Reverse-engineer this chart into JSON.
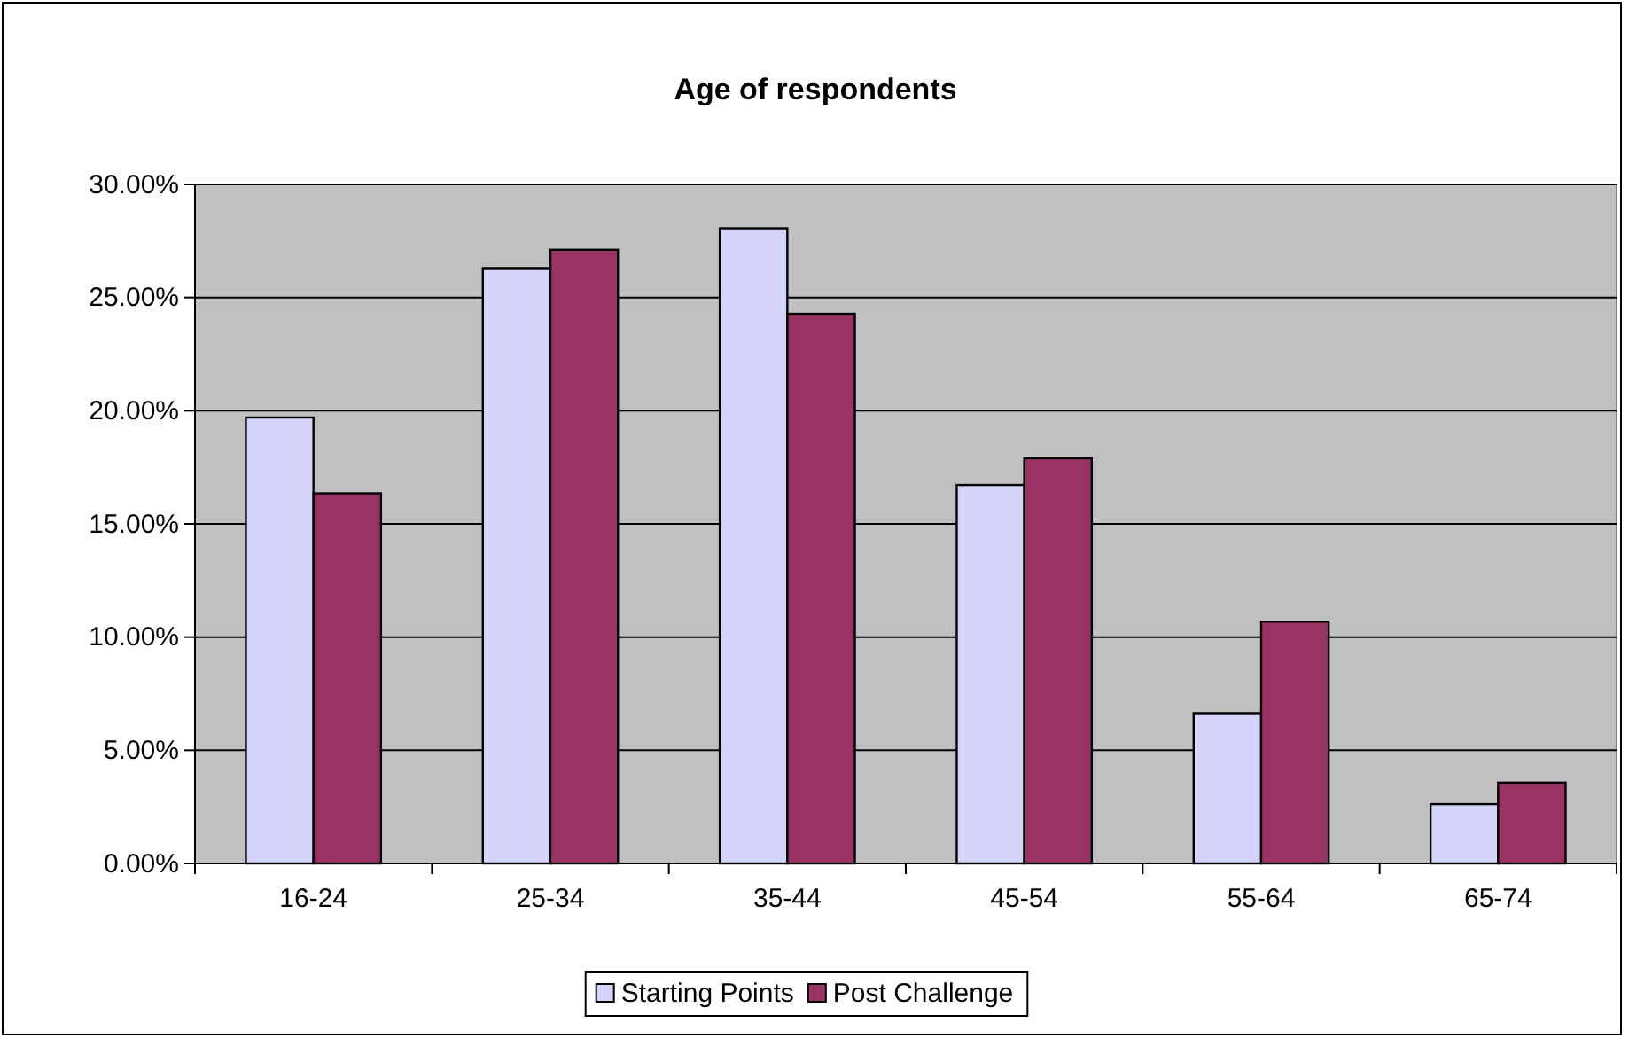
{
  "chart_data": {
    "type": "bar",
    "title": "Age of respondents",
    "categories": [
      "16-24",
      "25-34",
      "35-44",
      "45-54",
      "55-64",
      "65-74"
    ],
    "series": [
      {
        "name": "Starting Points",
        "color": "#d4d4fa",
        "values": [
          19.7,
          26.3,
          28.06,
          16.72,
          6.64,
          2.62
        ]
      },
      {
        "name": "Post Challenge",
        "color": "#993366",
        "values": [
          16.35,
          27.11,
          24.28,
          17.9,
          10.68,
          3.57
        ]
      }
    ],
    "ylim": [
      0,
      30
    ],
    "yticks": [
      {
        "value": 0,
        "label": "0.00%"
      },
      {
        "value": 5,
        "label": "5.00%"
      },
      {
        "value": 10,
        "label": "10.00%"
      },
      {
        "value": 15,
        "label": "15.00%"
      },
      {
        "value": 20,
        "label": "20.00%"
      },
      {
        "value": 25,
        "label": "25.00%"
      },
      {
        "value": 30,
        "label": "30.00%"
      }
    ],
    "grid": "y",
    "legend": "bottom"
  }
}
